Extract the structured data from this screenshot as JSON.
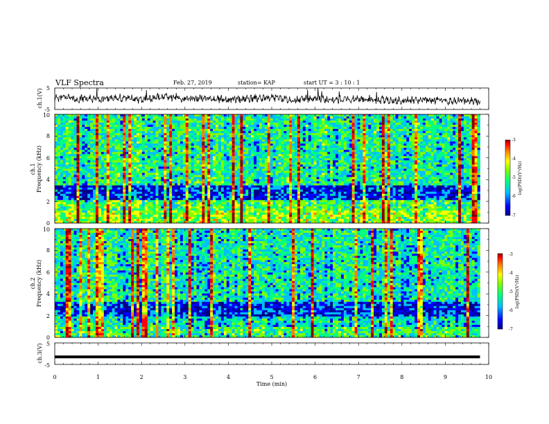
{
  "header": {
    "title": "VLF Spectra",
    "date": "Feb. 27, 2019",
    "station": "station= KAP",
    "start": "start  UT  =   3  : 10 : 1"
  },
  "colors": {
    "colormap": [
      "#00008b",
      "#0000ff",
      "#00bfff",
      "#00ff80",
      "#80ff00",
      "#ffff00",
      "#ff8000",
      "#ff0000",
      "#8b0000"
    ]
  },
  "chart_data": [
    {
      "type": "line",
      "panel": "ch1",
      "ylabel": "ch.1(V)",
      "ylim": [
        -5,
        5
      ],
      "yticklabels": [
        "5",
        "-5"
      ],
      "xlim": [
        0,
        10
      ],
      "x": [
        0,
        0.5,
        1,
        1.5,
        2,
        2.5,
        3,
        3.5,
        4,
        4.5,
        5,
        5.5,
        6,
        6.5,
        7,
        7.5,
        8,
        8.5,
        9,
        9.5,
        9.8
      ],
      "y": [
        0.5,
        0.0,
        -0.5,
        0.5,
        -0.5,
        1.0,
        0.0,
        0.5,
        -0.5,
        0.0,
        0.5,
        -0.5,
        0.0,
        -0.5,
        0.0,
        -0.5,
        -1.0,
        -0.5,
        -1.0,
        -1.0,
        -1.5
      ]
    },
    {
      "type": "heatmap",
      "panel": "ch1-spectrogram",
      "ylabel": "ch.1\nFrequency (kHz)",
      "ylim": [
        0,
        10
      ],
      "yticks": [
        0,
        2,
        4,
        6,
        8,
        10
      ],
      "xlim": [
        0,
        10
      ],
      "colorbar": {
        "label": "log(PSD)(V²/Hz)",
        "range": [
          -7,
          -3
        ],
        "ticks": [
          "-3",
          "-4",
          "-5",
          "-6",
          "-7"
        ]
      }
    },
    {
      "type": "heatmap",
      "panel": "ch2-spectrogram",
      "ylabel": "ch.2\nFrequency (kHz)",
      "ylim": [
        0,
        10
      ],
      "yticks": [
        0,
        2,
        4,
        6,
        8,
        10
      ],
      "xlim": [
        0,
        10
      ],
      "colorbar": {
        "label": "log(PSD)(V²/Hz)",
        "range": [
          -7,
          -3
        ],
        "ticks": [
          "-3",
          "-4",
          "-5",
          "-6",
          "-7"
        ]
      }
    },
    {
      "type": "line",
      "panel": "ch3",
      "ylabel": "ch.3(V)",
      "ylim": [
        -5,
        5
      ],
      "yticklabels": [
        "5",
        "-5"
      ],
      "xlim": [
        0,
        10
      ],
      "x": [
        0,
        9.8
      ],
      "y": [
        -1.5,
        -1.5
      ]
    }
  ],
  "xaxis": {
    "label": "Time  (min)",
    "ticks": [
      "0",
      "1",
      "2",
      "3",
      "4",
      "5",
      "6",
      "7",
      "8",
      "9",
      "10"
    ]
  }
}
